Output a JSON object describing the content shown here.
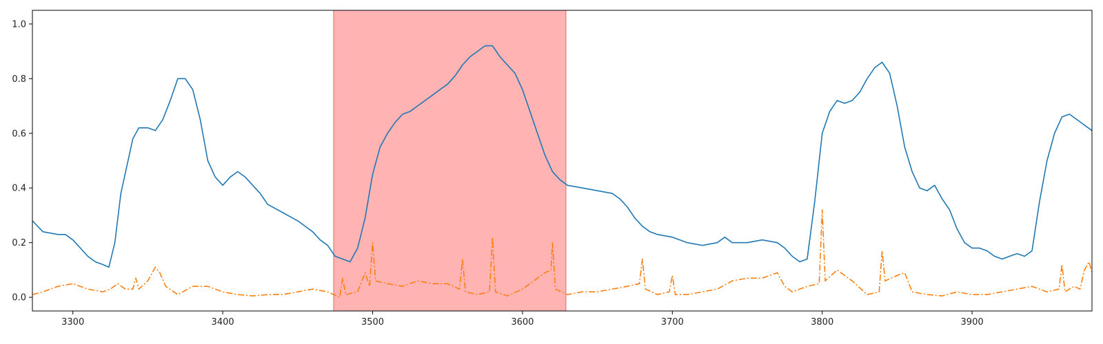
{
  "chart_data": {
    "type": "line",
    "title": "",
    "xlabel": "",
    "ylabel": "",
    "xlim": [
      3273,
      3980
    ],
    "ylim": [
      -0.05,
      1.05
    ],
    "xticks": [
      3300,
      3400,
      3500,
      3600,
      3700,
      3800,
      3900
    ],
    "yticks": [
      0.0,
      0.2,
      0.4,
      0.6,
      0.8,
      1.0
    ],
    "grid": false,
    "legend": "none",
    "highlight": {
      "x_start": 3474,
      "x_end": 3629,
      "color": "#ff9999"
    },
    "series": [
      {
        "style": "solid",
        "color": "#1f77b4",
        "points": [
          [
            3273,
            0.28
          ],
          [
            3280,
            0.24
          ],
          [
            3290,
            0.23
          ],
          [
            3295,
            0.23
          ],
          [
            3300,
            0.21
          ],
          [
            3305,
            0.18
          ],
          [
            3310,
            0.15
          ],
          [
            3315,
            0.13
          ],
          [
            3320,
            0.12
          ],
          [
            3324,
            0.11
          ],
          [
            3328,
            0.2
          ],
          [
            3332,
            0.38
          ],
          [
            3336,
            0.48
          ],
          [
            3340,
            0.58
          ],
          [
            3344,
            0.62
          ],
          [
            3350,
            0.62
          ],
          [
            3355,
            0.61
          ],
          [
            3360,
            0.65
          ],
          [
            3365,
            0.72
          ],
          [
            3370,
            0.8
          ],
          [
            3375,
            0.8
          ],
          [
            3380,
            0.76
          ],
          [
            3385,
            0.65
          ],
          [
            3390,
            0.5
          ],
          [
            3395,
            0.44
          ],
          [
            3400,
            0.41
          ],
          [
            3405,
            0.44
          ],
          [
            3410,
            0.46
          ],
          [
            3415,
            0.44
          ],
          [
            3420,
            0.41
          ],
          [
            3425,
            0.38
          ],
          [
            3430,
            0.34
          ],
          [
            3440,
            0.31
          ],
          [
            3450,
            0.28
          ],
          [
            3460,
            0.24
          ],
          [
            3465,
            0.21
          ],
          [
            3470,
            0.19
          ],
          [
            3475,
            0.15
          ],
          [
            3480,
            0.14
          ],
          [
            3485,
            0.13
          ],
          [
            3490,
            0.18
          ],
          [
            3495,
            0.29
          ],
          [
            3500,
            0.45
          ],
          [
            3505,
            0.55
          ],
          [
            3510,
            0.6
          ],
          [
            3515,
            0.64
          ],
          [
            3520,
            0.67
          ],
          [
            3525,
            0.68
          ],
          [
            3530,
            0.7
          ],
          [
            3535,
            0.72
          ],
          [
            3540,
            0.74
          ],
          [
            3545,
            0.76
          ],
          [
            3550,
            0.78
          ],
          [
            3555,
            0.81
          ],
          [
            3560,
            0.85
          ],
          [
            3565,
            0.88
          ],
          [
            3570,
            0.9
          ],
          [
            3575,
            0.92
          ],
          [
            3580,
            0.92
          ],
          [
            3585,
            0.88
          ],
          [
            3590,
            0.85
          ],
          [
            3595,
            0.82
          ],
          [
            3600,
            0.76
          ],
          [
            3605,
            0.68
          ],
          [
            3610,
            0.6
          ],
          [
            3615,
            0.52
          ],
          [
            3620,
            0.46
          ],
          [
            3625,
            0.43
          ],
          [
            3630,
            0.41
          ],
          [
            3640,
            0.4
          ],
          [
            3650,
            0.39
          ],
          [
            3660,
            0.38
          ],
          [
            3665,
            0.36
          ],
          [
            3670,
            0.33
          ],
          [
            3675,
            0.29
          ],
          [
            3680,
            0.26
          ],
          [
            3685,
            0.24
          ],
          [
            3690,
            0.23
          ],
          [
            3700,
            0.22
          ],
          [
            3710,
            0.2
          ],
          [
            3720,
            0.19
          ],
          [
            3730,
            0.2
          ],
          [
            3735,
            0.22
          ],
          [
            3740,
            0.2
          ],
          [
            3750,
            0.2
          ],
          [
            3760,
            0.21
          ],
          [
            3770,
            0.2
          ],
          [
            3775,
            0.18
          ],
          [
            3780,
            0.15
          ],
          [
            3785,
            0.13
          ],
          [
            3790,
            0.14
          ],
          [
            3795,
            0.35
          ],
          [
            3800,
            0.6
          ],
          [
            3805,
            0.68
          ],
          [
            3810,
            0.72
          ],
          [
            3815,
            0.71
          ],
          [
            3820,
            0.72
          ],
          [
            3825,
            0.75
          ],
          [
            3830,
            0.8
          ],
          [
            3835,
            0.84
          ],
          [
            3840,
            0.86
          ],
          [
            3845,
            0.82
          ],
          [
            3850,
            0.7
          ],
          [
            3855,
            0.55
          ],
          [
            3860,
            0.46
          ],
          [
            3865,
            0.4
          ],
          [
            3870,
            0.39
          ],
          [
            3875,
            0.41
          ],
          [
            3880,
            0.36
          ],
          [
            3885,
            0.32
          ],
          [
            3890,
            0.25
          ],
          [
            3895,
            0.2
          ],
          [
            3900,
            0.18
          ],
          [
            3905,
            0.18
          ],
          [
            3910,
            0.17
          ],
          [
            3915,
            0.15
          ],
          [
            3920,
            0.14
          ],
          [
            3925,
            0.15
          ],
          [
            3930,
            0.16
          ],
          [
            3935,
            0.15
          ],
          [
            3940,
            0.17
          ],
          [
            3945,
            0.35
          ],
          [
            3950,
            0.5
          ],
          [
            3955,
            0.6
          ],
          [
            3960,
            0.66
          ],
          [
            3965,
            0.67
          ],
          [
            3970,
            0.65
          ],
          [
            3975,
            0.63
          ],
          [
            3980,
            0.61
          ]
        ]
      },
      {
        "style": "dashdot",
        "color": "#ff7f0e",
        "points": [
          [
            3273,
            0.01
          ],
          [
            3280,
            0.02
          ],
          [
            3290,
            0.04
          ],
          [
            3300,
            0.05
          ],
          [
            3310,
            0.03
          ],
          [
            3320,
            0.02
          ],
          [
            3325,
            0.03
          ],
          [
            3330,
            0.05
          ],
          [
            3335,
            0.03
          ],
          [
            3340,
            0.03
          ],
          [
            3342,
            0.07
          ],
          [
            3344,
            0.03
          ],
          [
            3350,
            0.06
          ],
          [
            3355,
            0.11
          ],
          [
            3358,
            0.09
          ],
          [
            3362,
            0.04
          ],
          [
            3370,
            0.01
          ],
          [
            3380,
            0.04
          ],
          [
            3390,
            0.04
          ],
          [
            3395,
            0.03
          ],
          [
            3400,
            0.02
          ],
          [
            3410,
            0.01
          ],
          [
            3420,
            0.005
          ],
          [
            3430,
            0.01
          ],
          [
            3440,
            0.01
          ],
          [
            3450,
            0.02
          ],
          [
            3460,
            0.03
          ],
          [
            3470,
            0.02
          ],
          [
            3474,
            0.01
          ],
          [
            3478,
            0.0
          ],
          [
            3480,
            0.07
          ],
          [
            3482,
            0.01
          ],
          [
            3490,
            0.02
          ],
          [
            3495,
            0.09
          ],
          [
            3498,
            0.04
          ],
          [
            3500,
            0.2
          ],
          [
            3502,
            0.06
          ],
          [
            3510,
            0.05
          ],
          [
            3520,
            0.04
          ],
          [
            3530,
            0.06
          ],
          [
            3540,
            0.05
          ],
          [
            3550,
            0.05
          ],
          [
            3558,
            0.03
          ],
          [
            3560,
            0.14
          ],
          [
            3562,
            0.02
          ],
          [
            3570,
            0.01
          ],
          [
            3578,
            0.02
          ],
          [
            3580,
            0.22
          ],
          [
            3582,
            0.02
          ],
          [
            3590,
            0.005
          ],
          [
            3600,
            0.03
          ],
          [
            3605,
            0.05
          ],
          [
            3610,
            0.07
          ],
          [
            3615,
            0.09
          ],
          [
            3619,
            0.1
          ],
          [
            3620,
            0.2
          ],
          [
            3622,
            0.03
          ],
          [
            3630,
            0.01
          ],
          [
            3640,
            0.02
          ],
          [
            3650,
            0.02
          ],
          [
            3660,
            0.03
          ],
          [
            3670,
            0.04
          ],
          [
            3678,
            0.05
          ],
          [
            3680,
            0.14
          ],
          [
            3682,
            0.03
          ],
          [
            3690,
            0.01
          ],
          [
            3698,
            0.02
          ],
          [
            3700,
            0.08
          ],
          [
            3702,
            0.01
          ],
          [
            3710,
            0.01
          ],
          [
            3720,
            0.02
          ],
          [
            3730,
            0.03
          ],
          [
            3740,
            0.06
          ],
          [
            3750,
            0.07
          ],
          [
            3760,
            0.07
          ],
          [
            3765,
            0.08
          ],
          [
            3770,
            0.09
          ],
          [
            3775,
            0.04
          ],
          [
            3780,
            0.02
          ],
          [
            3790,
            0.04
          ],
          [
            3798,
            0.05
          ],
          [
            3800,
            0.32
          ],
          [
            3802,
            0.06
          ],
          [
            3810,
            0.1
          ],
          [
            3815,
            0.08
          ],
          [
            3820,
            0.06
          ],
          [
            3830,
            0.01
          ],
          [
            3838,
            0.02
          ],
          [
            3840,
            0.17
          ],
          [
            3842,
            0.06
          ],
          [
            3850,
            0.08
          ],
          [
            3855,
            0.09
          ],
          [
            3860,
            0.02
          ],
          [
            3870,
            0.01
          ],
          [
            3880,
            0.005
          ],
          [
            3890,
            0.02
          ],
          [
            3900,
            0.01
          ],
          [
            3910,
            0.01
          ],
          [
            3920,
            0.02
          ],
          [
            3930,
            0.03
          ],
          [
            3940,
            0.04
          ],
          [
            3950,
            0.02
          ],
          [
            3958,
            0.03
          ],
          [
            3960,
            0.12
          ],
          [
            3962,
            0.02
          ],
          [
            3968,
            0.04
          ],
          [
            3972,
            0.03
          ],
          [
            3975,
            0.1
          ],
          [
            3978,
            0.13
          ],
          [
            3980,
            0.09
          ]
        ]
      }
    ]
  }
}
